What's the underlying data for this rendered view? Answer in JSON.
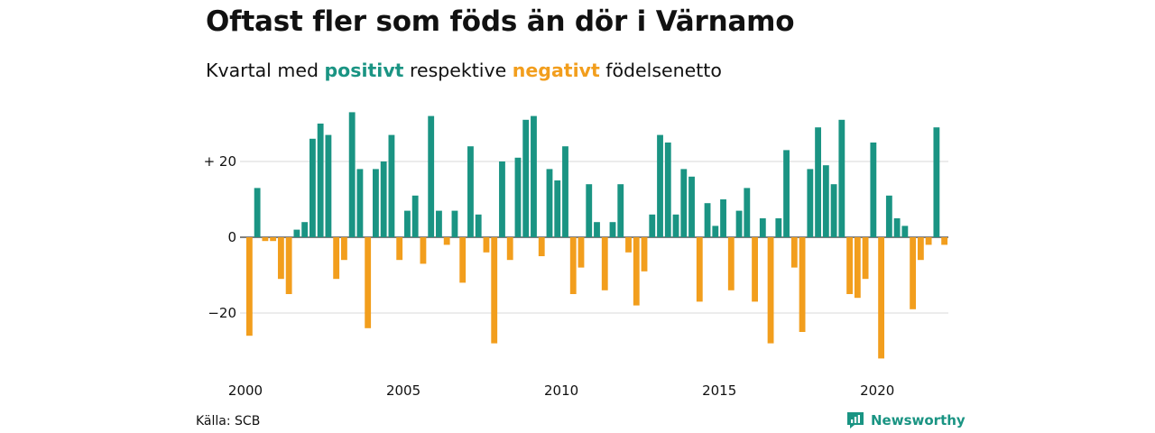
{
  "header": {
    "title": "Oftast fler som föds än dör i Värnamo",
    "subtitle_pre": "Kvartal med ",
    "subtitle_pos": "positivt",
    "subtitle_mid": " respektive ",
    "subtitle_neg": "negativt",
    "subtitle_post": " födelsenetto"
  },
  "footer": {
    "source": "Källa: SCB",
    "brand": "Newsworthy"
  },
  "colors": {
    "positive": "#1a9483",
    "negative": "#f29e1d",
    "grid": "#d9d9d9",
    "zero_line": "#333333"
  },
  "icons": [
    "newsworthy-logo-icon"
  ],
  "chart_data": {
    "type": "bar",
    "title": "Oftast fler som föds än dör i Värnamo",
    "subtitle": "Kvartal med positivt respektive negativt födelsenetto",
    "x_start": "2000Q1",
    "y_ticks": [
      {
        "value": 20,
        "label": "+ 20"
      },
      {
        "value": 0,
        "label": "0"
      },
      {
        "value": -20,
        "label": "−20"
      }
    ],
    "x_ticks": [
      {
        "value": "2000Q1",
        "label": "2000"
      },
      {
        "value": "2005Q1",
        "label": "2005"
      },
      {
        "value": "2010Q1",
        "label": "2010"
      },
      {
        "value": "2015Q1",
        "label": "2015"
      },
      {
        "value": "2020Q1",
        "label": "2020"
      }
    ],
    "ylim": [
      -35,
      35
    ],
    "grid": true,
    "values": [
      -26,
      13,
      -1,
      -1,
      -11,
      -15,
      2,
      4,
      26,
      30,
      27,
      -11,
      -6,
      33,
      18,
      -24,
      18,
      20,
      27,
      -6,
      7,
      11,
      -7,
      32,
      7,
      -2,
      7,
      -12,
      24,
      6,
      -4,
      -28,
      20,
      -6,
      21,
      31,
      32,
      -5,
      18,
      15,
      24,
      -15,
      -8,
      14,
      4,
      -14,
      4,
      14,
      -4,
      -18,
      -9,
      6,
      27,
      25,
      6,
      18,
      16,
      -17,
      9,
      3,
      10,
      -14,
      7,
      13,
      -17,
      5,
      -28,
      5,
      23,
      -8,
      -25,
      18,
      29,
      19,
      14,
      31,
      -15,
      -16,
      -11,
      25,
      -32,
      11,
      5,
      3,
      -19,
      -6,
      -2,
      29,
      -2
    ]
  }
}
